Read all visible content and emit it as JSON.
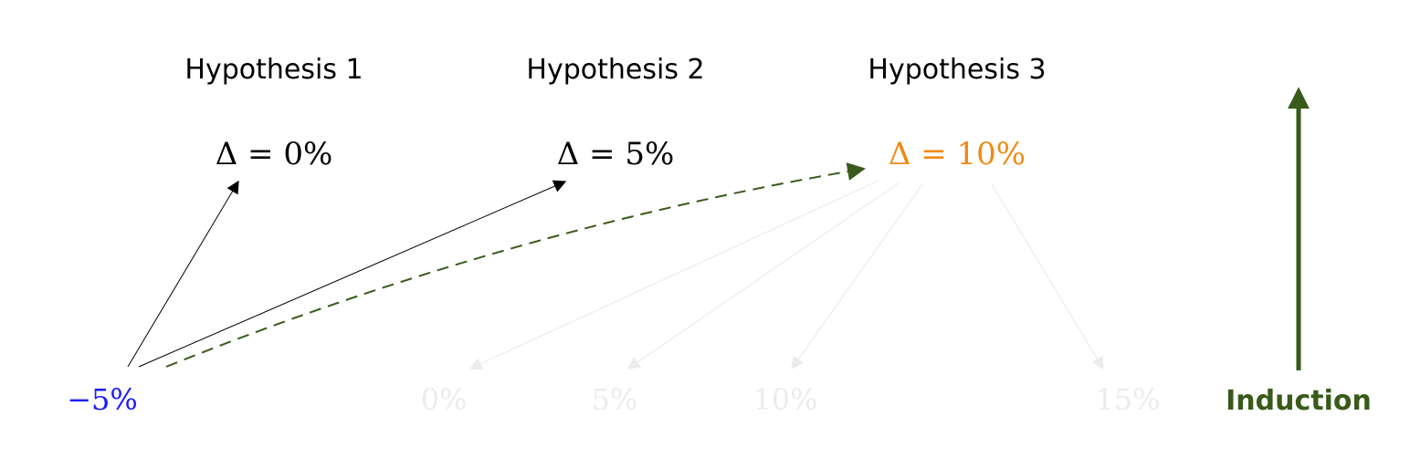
{
  "colors": {
    "black": "#000000",
    "observation": "#1a1aff",
    "selected": "#f08a12",
    "induction": "#3a5a1a",
    "faded": "#ececec"
  },
  "hypotheses": [
    {
      "title": "Hypothesis 1",
      "delta": "Δ = 0%",
      "selected": false
    },
    {
      "title": "Hypothesis 2",
      "delta": "Δ = 5%",
      "selected": false
    },
    {
      "title": "Hypothesis 3",
      "delta": "Δ = 10%",
      "selected": true
    }
  ],
  "observation": {
    "label": "−5%"
  },
  "predictions": [
    {
      "label": "0%"
    },
    {
      "label": "5%"
    },
    {
      "label": "10%"
    },
    {
      "label": "15%"
    }
  ],
  "induction": {
    "label": "Induction",
    "icon": "arrow-up-icon"
  }
}
